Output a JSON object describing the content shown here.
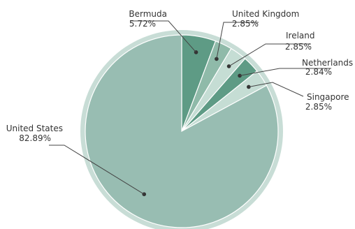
{
  "chart_data": {
    "type": "pie",
    "slices": [
      {
        "name": "Bermuda",
        "value": 5.72,
        "label": "5.72%",
        "color": "#5e9b85"
      },
      {
        "name": "United Kingdom",
        "value": 2.85,
        "label": "2.85%",
        "color": "#8fbaa9"
      },
      {
        "name": "Ireland",
        "value": 2.85,
        "label": "2.85%",
        "color": "#c5ddd4"
      },
      {
        "name": "Netherlands",
        "value": 2.84,
        "label": "2.84%",
        "color": "#5e9b85"
      },
      {
        "name": "Singapore",
        "value": 2.85,
        "label": "2.85%",
        "color": "#c5ddd4"
      },
      {
        "name": "United States",
        "value": 82.89,
        "label": "82.89%",
        "color": "#98bdb2"
      }
    ],
    "outer_ring_color": "#c8ddd6"
  }
}
